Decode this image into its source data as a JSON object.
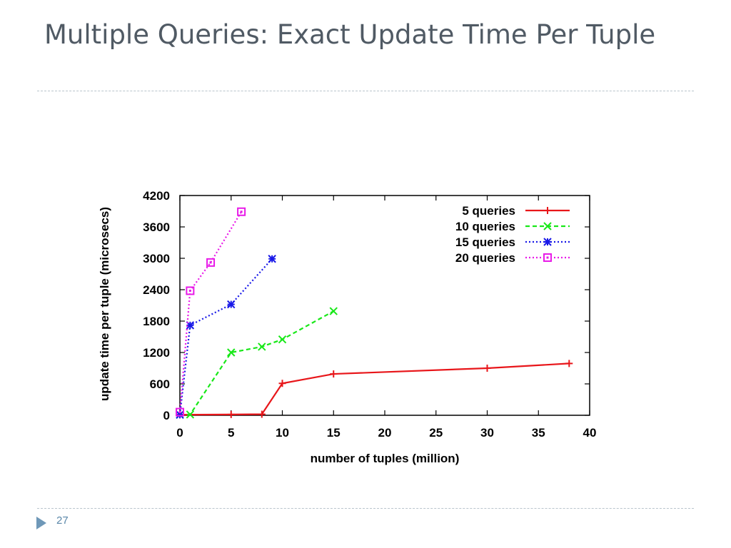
{
  "slide": {
    "title": "Multiple Queries: Exact Update Time Per Tuple",
    "page_number": "27"
  },
  "colors": {
    "title": "#505a64",
    "divider": "#b9c4cc",
    "bullet": "#6f98b8"
  },
  "chart_data": {
    "type": "line",
    "title": "",
    "xlabel": "number of tuples (million)",
    "ylabel": "update time per tuple (microsecs)",
    "xlim": [
      0,
      40
    ],
    "ylim": [
      0,
      4200
    ],
    "xticks": [
      0,
      5,
      10,
      15,
      20,
      25,
      30,
      35,
      40
    ],
    "yticks": [
      0,
      600,
      1200,
      1800,
      2400,
      3000,
      3600,
      4200
    ],
    "grid": false,
    "legend_position": "top-right",
    "series": [
      {
        "name": "5 queries",
        "color": "#e8161a",
        "line_style": "solid",
        "marker": "plus",
        "points": [
          [
            0,
            10
          ],
          [
            5,
            15
          ],
          [
            8,
            20
          ],
          [
            10,
            610
          ],
          [
            15,
            790
          ],
          [
            30,
            900
          ],
          [
            38,
            990
          ]
        ]
      },
      {
        "name": "10 queries",
        "color": "#18e818",
        "line_style": "dashed",
        "marker": "x",
        "points": [
          [
            0,
            10
          ],
          [
            1,
            15
          ],
          [
            5,
            1200
          ],
          [
            8,
            1310
          ],
          [
            10,
            1450
          ],
          [
            15,
            1990
          ]
        ]
      },
      {
        "name": "15 queries",
        "color": "#1818e8",
        "line_style": "dotted",
        "marker": "star",
        "points": [
          [
            0,
            10
          ],
          [
            1,
            1720
          ],
          [
            5,
            2120
          ],
          [
            9,
            2990
          ]
        ]
      },
      {
        "name": "20 queries",
        "color": "#e81ae8",
        "line_style": "dotted",
        "marker": "square",
        "points": [
          [
            0,
            60
          ],
          [
            1,
            2380
          ],
          [
            3,
            2920
          ],
          [
            6,
            3890
          ]
        ]
      }
    ]
  }
}
